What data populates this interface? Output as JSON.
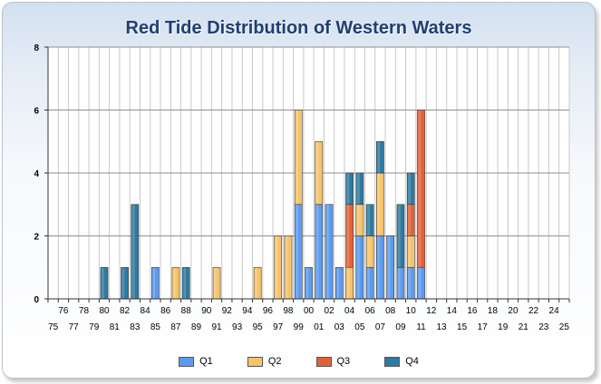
{
  "chart_data": {
    "type": "bar",
    "stacked": true,
    "title": "Red Tide Distribution of Western Waters",
    "xlabel": "",
    "ylabel": "",
    "ylim": [
      0,
      8
    ],
    "yticks": [
      "0",
      "2",
      "4",
      "6",
      "8"
    ],
    "grid": true,
    "legend_position": "bottom",
    "categories": [
      "75",
      "76",
      "77",
      "78",
      "79",
      "80",
      "81",
      "82",
      "83",
      "84",
      "85",
      "86",
      "87",
      "88",
      "89",
      "90",
      "91",
      "92",
      "93",
      "94",
      "95",
      "96",
      "97",
      "98",
      "99",
      "00",
      "01",
      "02",
      "03",
      "04",
      "05",
      "06",
      "07",
      "08",
      "09",
      "10",
      "11",
      "12",
      "13",
      "14",
      "15",
      "16",
      "17",
      "18",
      "19",
      "20",
      "21",
      "22",
      "23",
      "24",
      "25"
    ],
    "series": [
      {
        "name": "Q1",
        "color": "#5b9bef",
        "values": [
          0,
          0,
          0,
          0,
          0,
          0,
          0,
          0,
          0,
          0,
          1,
          0,
          0,
          0,
          0,
          0,
          0,
          0,
          0,
          0,
          0,
          0,
          0,
          0,
          3,
          1,
          3,
          3,
          1,
          0,
          2,
          1,
          2,
          2,
          1,
          1,
          1,
          0,
          0,
          0,
          0,
          0,
          0,
          0,
          0,
          0,
          0,
          0,
          0,
          0,
          0
        ]
      },
      {
        "name": "Q2",
        "color": "#f6c46b",
        "values": [
          0,
          0,
          0,
          0,
          0,
          0,
          0,
          0,
          0,
          0,
          0,
          0,
          1,
          0,
          0,
          0,
          1,
          0,
          0,
          0,
          1,
          0,
          2,
          2,
          3,
          0,
          2,
          0,
          0,
          1,
          1,
          1,
          2,
          0,
          0,
          1,
          0,
          0,
          0,
          0,
          0,
          0,
          0,
          0,
          0,
          0,
          0,
          0,
          0,
          0,
          0
        ]
      },
      {
        "name": "Q3",
        "color": "#e3613a",
        "values": [
          0,
          0,
          0,
          0,
          0,
          0,
          0,
          0,
          0,
          0,
          0,
          0,
          0,
          0,
          0,
          0,
          0,
          0,
          0,
          0,
          0,
          0,
          0,
          0,
          0,
          0,
          0,
          0,
          0,
          2,
          0,
          0,
          0,
          0,
          0,
          1,
          5,
          0,
          0,
          0,
          0,
          0,
          0,
          0,
          0,
          0,
          0,
          0,
          0,
          0,
          0
        ]
      },
      {
        "name": "Q4",
        "color": "#2f7aa1",
        "values": [
          0,
          0,
          0,
          0,
          0,
          1,
          0,
          1,
          3,
          0,
          0,
          0,
          0,
          1,
          0,
          0,
          0,
          0,
          0,
          0,
          0,
          0,
          0,
          0,
          0,
          0,
          0,
          0,
          0,
          1,
          1,
          1,
          1,
          0,
          2,
          1,
          0,
          0,
          0,
          0,
          0,
          0,
          0,
          0,
          0,
          0,
          0,
          0,
          0,
          0,
          0
        ]
      }
    ]
  }
}
